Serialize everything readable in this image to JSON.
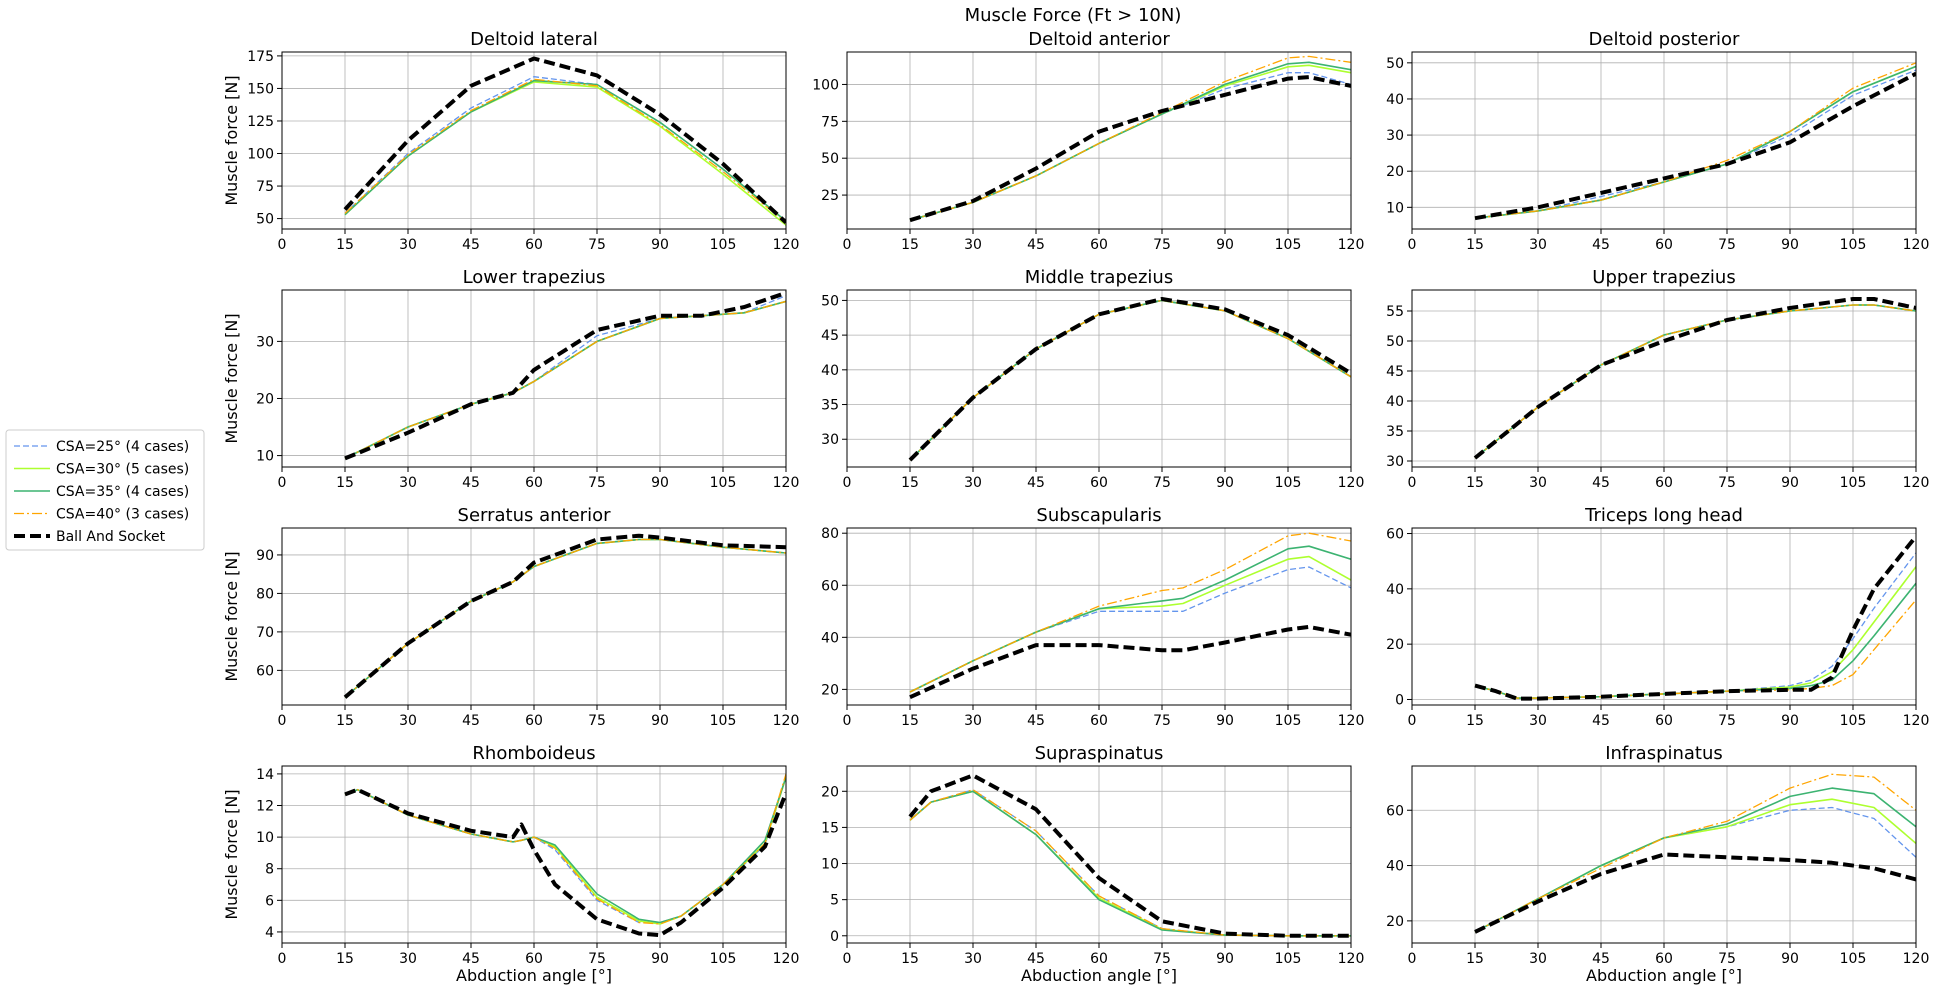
{
  "figure": {
    "title": "Muscle Force (Ft > 10N)"
  },
  "legend": {
    "placement": "left"
  },
  "chart_data": {
    "type": "line",
    "x_ticks": [
      0,
      15,
      30,
      45,
      60,
      75,
      90,
      105,
      120
    ],
    "xlim": [
      0,
      120
    ],
    "series_styles": [
      {
        "name": "CSA=25° (4 cases)",
        "color": "#6495ed",
        "dash": "6,3",
        "width": 1.3
      },
      {
        "name": "CSA=30° (5 cases)",
        "color": "#adff2f",
        "dash": "",
        "width": 1.6
      },
      {
        "name": "CSA=35° (4 cases)",
        "color": "#3cb371",
        "dash": "",
        "width": 1.6
      },
      {
        "name": "CSA=40° (3 cases)",
        "color": "#ffa500",
        "dash": "10,3,2,3",
        "width": 1.3
      },
      {
        "name": "Ball And Socket",
        "color": "#000000",
        "dash": "11,5",
        "width": 4
      }
    ],
    "panels": [
      {
        "title": "Deltoid lateral",
        "ylabel": "Muscle force [N]",
        "xlabel": "",
        "ylim": [
          42,
          178
        ],
        "yticks": [
          50,
          75,
          100,
          125,
          150,
          175
        ],
        "x": [
          15,
          30,
          45,
          60,
          75,
          90,
          105,
          120
        ],
        "series": [
          [
            54,
            100,
            135,
            159,
            153,
            124,
            88,
            48
          ],
          [
            53,
            98,
            132,
            155,
            151,
            121,
            84,
            45
          ],
          [
            53,
            98,
            132,
            156,
            153,
            124,
            88,
            48
          ],
          [
            54,
            99,
            133,
            157,
            152,
            122,
            86,
            47
          ],
          [
            57,
            110,
            152,
            173,
            160,
            130,
            92,
            47
          ]
        ]
      },
      {
        "title": "Deltoid anterior",
        "ylabel": "",
        "xlabel": "",
        "ylim": [
          2,
          122
        ],
        "yticks": [
          25,
          50,
          75,
          100
        ],
        "x": [
          15,
          30,
          45,
          60,
          75,
          90,
          105,
          110,
          120
        ],
        "series": [
          [
            8,
            20,
            38,
            60,
            80,
            97,
            108,
            108,
            100
          ],
          [
            8,
            20,
            38,
            60,
            80,
            99,
            112,
            113,
            108
          ],
          [
            8,
            20,
            38,
            60,
            80,
            100,
            114,
            115,
            110
          ],
          [
            8,
            20,
            38,
            60,
            81,
            102,
            118,
            119,
            115
          ],
          [
            8,
            21,
            43,
            68,
            82,
            93,
            104,
            105,
            99
          ]
        ]
      },
      {
        "title": "Deltoid posterior",
        "ylabel": "",
        "xlabel": "",
        "ylim": [
          4,
          53
        ],
        "yticks": [
          10,
          20,
          30,
          40,
          50
        ],
        "x": [
          15,
          30,
          45,
          60,
          75,
          90,
          105,
          120
        ],
        "series": [
          [
            7,
            9,
            13,
            17,
            22,
            30,
            41,
            48
          ],
          [
            7,
            9,
            12,
            17,
            22,
            31,
            42,
            49
          ],
          [
            7,
            9,
            12,
            17,
            22,
            31,
            42,
            49
          ],
          [
            7,
            9,
            12,
            17,
            23,
            31,
            43,
            50
          ],
          [
            7,
            10,
            14,
            18,
            22,
            28,
            38,
            47
          ]
        ]
      },
      {
        "title": "Lower trapezius",
        "ylabel": "Muscle force [N]",
        "xlabel": "",
        "ylim": [
          8,
          39
        ],
        "yticks": [
          10,
          20,
          30
        ],
        "x": [
          15,
          30,
          45,
          55,
          60,
          75,
          90,
          100,
          110,
          120
        ],
        "series": [
          [
            9.5,
            15,
            19,
            21,
            23,
            31,
            34,
            34.5,
            35,
            38
          ],
          [
            9.5,
            15,
            19,
            21,
            23,
            30,
            34,
            34.5,
            35,
            37
          ],
          [
            9.5,
            15,
            19,
            21,
            23,
            30,
            34,
            34.5,
            35,
            37
          ],
          [
            9.5,
            15,
            19,
            21,
            23,
            30,
            34,
            34.5,
            35,
            37
          ],
          [
            9.5,
            14,
            19,
            21,
            25,
            32,
            34.5,
            34.5,
            36,
            38.5
          ]
        ]
      },
      {
        "title": "Middle trapezius",
        "ylabel": "",
        "xlabel": "",
        "ylim": [
          26,
          51.5
        ],
        "yticks": [
          30,
          35,
          40,
          45,
          50
        ],
        "x": [
          15,
          30,
          45,
          60,
          75,
          90,
          105,
          120
        ],
        "series": [
          [
            27,
            36,
            43,
            48,
            50,
            48.5,
            44.5,
            39
          ],
          [
            27,
            36,
            43,
            48,
            50,
            48.5,
            44.5,
            39
          ],
          [
            27,
            36,
            43,
            48,
            50,
            48.5,
            44.5,
            39
          ],
          [
            27,
            36,
            43,
            48,
            50,
            48.5,
            44.5,
            39
          ],
          [
            27,
            36,
            43,
            48,
            50.2,
            48.7,
            45,
            39.5
          ]
        ]
      },
      {
        "title": "Upper trapezius",
        "ylabel": "",
        "xlabel": "",
        "ylim": [
          29,
          58.5
        ],
        "yticks": [
          30,
          35,
          40,
          45,
          50,
          55
        ],
        "x": [
          15,
          30,
          45,
          60,
          75,
          90,
          105,
          110,
          120
        ],
        "series": [
          [
            30.5,
            39,
            46,
            51,
            53.5,
            55,
            56,
            56,
            55
          ],
          [
            30.5,
            39,
            46,
            51,
            53.5,
            55,
            56,
            56,
            55
          ],
          [
            30.5,
            39,
            46,
            51,
            53.5,
            55,
            56,
            56,
            55
          ],
          [
            30.5,
            39,
            46,
            51,
            53.5,
            55,
            56,
            56,
            55
          ],
          [
            30.5,
            39,
            46,
            50,
            53.5,
            55.5,
            57,
            57,
            55.5
          ]
        ]
      },
      {
        "title": "Serratus anterior",
        "ylabel": "Muscle force [N]",
        "xlabel": "",
        "ylim": [
          51,
          97
        ],
        "yticks": [
          60,
          70,
          80,
          90
        ],
        "x": [
          15,
          30,
          45,
          55,
          60,
          75,
          85,
          90,
          105,
          120
        ],
        "series": [
          [
            53,
            67,
            78,
            83,
            87,
            93,
            94,
            94,
            92,
            90.5
          ],
          [
            53,
            67,
            78,
            83,
            87,
            93,
            94,
            94,
            92,
            90.5
          ],
          [
            53,
            67,
            78,
            83,
            87,
            93,
            94,
            94,
            92,
            90.5
          ],
          [
            53,
            67,
            78,
            83,
            87,
            93,
            94,
            94,
            92,
            90.5
          ],
          [
            53,
            67,
            78,
            83,
            88,
            94,
            95,
            94.5,
            92.5,
            92
          ]
        ]
      },
      {
        "title": "Subscapularis",
        "ylabel": "",
        "xlabel": "",
        "ylim": [
          14,
          82
        ],
        "yticks": [
          20,
          40,
          60,
          80
        ],
        "x": [
          15,
          30,
          45,
          60,
          75,
          80,
          90,
          105,
          110,
          120
        ],
        "series": [
          [
            19,
            31,
            42,
            50,
            50,
            50,
            57,
            66,
            67,
            59
          ],
          [
            19,
            31,
            42,
            51,
            52,
            53,
            60,
            70,
            71,
            62
          ],
          [
            19,
            31,
            42,
            51,
            54,
            55,
            62,
            74,
            75,
            70
          ],
          [
            19,
            31,
            42,
            52,
            58,
            59,
            66,
            79,
            80,
            77
          ],
          [
            17,
            28,
            37,
            37,
            35,
            35,
            38,
            43,
            44,
            41
          ]
        ]
      },
      {
        "title": "Triceps long head",
        "ylabel": "",
        "xlabel": "",
        "ylim": [
          -2,
          62
        ],
        "yticks": [
          0,
          20,
          40,
          60
        ],
        "x": [
          15,
          20,
          25,
          30,
          45,
          60,
          75,
          90,
          95,
          100,
          105,
          110,
          120
        ],
        "series": [
          [
            5,
            3,
            0.5,
            0.5,
            1,
            2,
            3,
            5,
            7,
            12,
            22,
            33,
            53
          ],
          [
            5,
            3,
            0.5,
            0.5,
            1,
            2,
            3,
            4.5,
            6,
            10,
            18,
            28,
            48
          ],
          [
            5,
            3,
            0.5,
            0.5,
            1,
            2,
            3,
            4,
            5,
            7,
            14,
            23,
            42
          ],
          [
            5,
            3,
            0.5,
            0.5,
            1,
            2,
            3,
            3.5,
            4,
            5,
            9,
            18,
            36
          ],
          [
            5,
            3,
            0.3,
            0.3,
            1,
            2,
            3,
            3.5,
            3.5,
            8,
            25,
            40,
            59
          ]
        ]
      },
      {
        "title": "Rhomboideus",
        "ylabel": "Muscle force [N]",
        "xlabel": "Abduction angle [°]",
        "ylim": [
          3.3,
          14.5
        ],
        "yticks": [
          4,
          6,
          8,
          10,
          12,
          14
        ],
        "x": [
          15,
          18,
          30,
          45,
          55,
          57,
          60,
          65,
          75,
          85,
          90,
          95,
          105,
          115,
          120
        ],
        "series": [
          [
            12.7,
            13,
            11.4,
            10.2,
            9.7,
            9.8,
            10,
            9.2,
            6,
            4.6,
            4.6,
            5,
            7,
            9.5,
            13.8
          ],
          [
            12.7,
            13,
            11.4,
            10.2,
            9.7,
            9.8,
            10,
            9.4,
            6.2,
            4.7,
            4.5,
            5,
            7,
            9.6,
            13.8
          ],
          [
            12.7,
            13,
            11.4,
            10.2,
            9.7,
            9.8,
            10,
            9.5,
            6.4,
            4.8,
            4.6,
            5,
            7,
            9.8,
            13.8
          ],
          [
            12.7,
            13,
            11.4,
            10.2,
            9.7,
            9.8,
            10,
            9.3,
            6.1,
            4.6,
            4.5,
            5,
            7,
            9.6,
            14
          ],
          [
            12.7,
            13,
            11.5,
            10.4,
            10,
            10.8,
            9.2,
            7,
            4.8,
            3.9,
            3.8,
            4.6,
            6.8,
            9.4,
            12.8
          ]
        ]
      },
      {
        "title": "Supraspinatus",
        "ylabel": "",
        "xlabel": "Abduction angle [°]",
        "ylim": [
          -1,
          23.5
        ],
        "yticks": [
          0,
          5,
          10,
          15,
          20
        ],
        "x": [
          15,
          20,
          30,
          45,
          60,
          75,
          90,
          105,
          120
        ],
        "series": [
          [
            16,
            18.5,
            20.2,
            14.5,
            5.5,
            1,
            0.1,
            0,
            0
          ],
          [
            16,
            18.5,
            20,
            14,
            5.2,
            0.9,
            0.1,
            0,
            0
          ],
          [
            16,
            18.5,
            20,
            14,
            5,
            0.8,
            0.1,
            0,
            0
          ],
          [
            16,
            18.5,
            20.2,
            14.5,
            5.5,
            1,
            0.1,
            0,
            0
          ],
          [
            16.5,
            20,
            22.2,
            17.5,
            8,
            2,
            0.3,
            0,
            0
          ]
        ]
      },
      {
        "title": "Infraspinatus",
        "ylabel": "",
        "xlabel": "Abduction angle [°]",
        "ylim": [
          12,
          76
        ],
        "yticks": [
          20,
          40,
          60
        ],
        "x": [
          15,
          30,
          45,
          60,
          75,
          90,
          100,
          110,
          120
        ],
        "series": [
          [
            16,
            28,
            40,
            50,
            54,
            60,
            61,
            57,
            43
          ],
          [
            16,
            28,
            40,
            50,
            54,
            62,
            64,
            61,
            48
          ],
          [
            16,
            28,
            40,
            50,
            55,
            65,
            68,
            66,
            54
          ],
          [
            16,
            28,
            39,
            50,
            56,
            68,
            73,
            72,
            60
          ],
          [
            16,
            27,
            37,
            44,
            43,
            42,
            41,
            39,
            35
          ]
        ]
      }
    ]
  }
}
